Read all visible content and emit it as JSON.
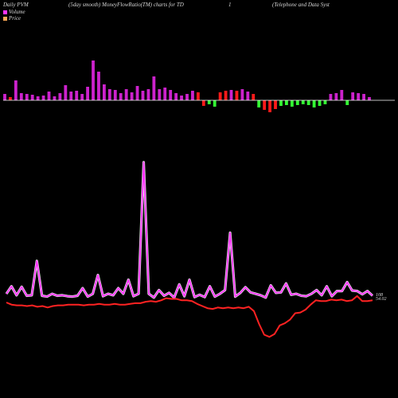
{
  "header": {
    "title_left": "Daily PVM",
    "title_mid": "(5day smooth) MoneyFlowRatio(TM) charts for TD",
    "title_num": "1",
    "title_right": "(Telephone  and Data  Syst"
  },
  "legend": {
    "volume_label": "Volume",
    "price_label": "Price",
    "volume_color": "#ff33ff",
    "price_color": "#ffaa55"
  },
  "end_labels": {
    "price_a": "108",
    "price_b": "54.02"
  },
  "colors": {
    "background": "#000000",
    "bar_up": "#cc22cc",
    "bar_down_red": "#ff1a1a",
    "bar_down_green": "#33ff33",
    "flow_line": "#ff33ff",
    "price_line": "#ff2222",
    "baseline": "#ffffff"
  },
  "chart_data": [
    {
      "type": "bar",
      "name": "money_flow_bars",
      "values": [
        {
          "v": 8,
          "c": "up"
        },
        {
          "v": 4,
          "c": "down_red"
        },
        {
          "v": 25,
          "c": "up"
        },
        {
          "v": 9,
          "c": "up"
        },
        {
          "v": 8,
          "c": "up"
        },
        {
          "v": 7,
          "c": "up"
        },
        {
          "v": 5,
          "c": "up"
        },
        {
          "v": 6,
          "c": "up"
        },
        {
          "v": 11,
          "c": "up"
        },
        {
          "v": 5,
          "c": "up"
        },
        {
          "v": 9,
          "c": "up"
        },
        {
          "v": 19,
          "c": "up"
        },
        {
          "v": 11,
          "c": "up"
        },
        {
          "v": 12,
          "c": "up"
        },
        {
          "v": 8,
          "c": "up"
        },
        {
          "v": 17,
          "c": "up"
        },
        {
          "v": 50,
          "c": "up"
        },
        {
          "v": 36,
          "c": "up"
        },
        {
          "v": 20,
          "c": "up"
        },
        {
          "v": 14,
          "c": "up"
        },
        {
          "v": 13,
          "c": "up"
        },
        {
          "v": 9,
          "c": "up"
        },
        {
          "v": 14,
          "c": "up"
        },
        {
          "v": 10,
          "c": "up"
        },
        {
          "v": 18,
          "c": "up"
        },
        {
          "v": 12,
          "c": "up"
        },
        {
          "v": 14,
          "c": "up"
        },
        {
          "v": 30,
          "c": "up"
        },
        {
          "v": 14,
          "c": "up"
        },
        {
          "v": 16,
          "c": "up"
        },
        {
          "v": 13,
          "c": "up"
        },
        {
          "v": 9,
          "c": "up"
        },
        {
          "v": 6,
          "c": "up"
        },
        {
          "v": 8,
          "c": "up"
        },
        {
          "v": 12,
          "c": "up"
        },
        {
          "v": 10,
          "c": "down_red"
        },
        {
          "v": -7,
          "c": "down_red"
        },
        {
          "v": -5,
          "c": "down_green"
        },
        {
          "v": -8,
          "c": "down_green"
        },
        {
          "v": 10,
          "c": "down_red"
        },
        {
          "v": 12,
          "c": "down_red"
        },
        {
          "v": 13,
          "c": "up"
        },
        {
          "v": 12,
          "c": "down_red"
        },
        {
          "v": 14,
          "c": "up"
        },
        {
          "v": 11,
          "c": "up"
        },
        {
          "v": 8,
          "c": "down_red"
        },
        {
          "v": -9,
          "c": "down_green"
        },
        {
          "v": -12,
          "c": "down_red"
        },
        {
          "v": -15,
          "c": "down_red"
        },
        {
          "v": -11,
          "c": "down_red"
        },
        {
          "v": -7,
          "c": "down_green"
        },
        {
          "v": -6,
          "c": "down_green"
        },
        {
          "v": -8,
          "c": "down_green"
        },
        {
          "v": -6,
          "c": "down_green"
        },
        {
          "v": -5,
          "c": "down_green"
        },
        {
          "v": -6,
          "c": "down_green"
        },
        {
          "v": -9,
          "c": "down_green"
        },
        {
          "v": -7,
          "c": "down_green"
        },
        {
          "v": -5,
          "c": "down_green"
        },
        {
          "v": 8,
          "c": "up"
        },
        {
          "v": 9,
          "c": "up"
        },
        {
          "v": 13,
          "c": "up"
        },
        {
          "v": -6,
          "c": "down_green"
        },
        {
          "v": 10,
          "c": "up"
        },
        {
          "v": 9,
          "c": "up"
        },
        {
          "v": 8,
          "c": "up"
        },
        {
          "v": 4,
          "c": "up"
        }
      ]
    },
    {
      "type": "line",
      "name": "money_flow_line",
      "values": [
        10,
        26,
        7,
        25,
        6,
        7,
        80,
        6,
        4,
        10,
        6,
        7,
        5,
        4,
        6,
        22,
        4,
        10,
        50,
        5,
        10,
        7,
        22,
        10,
        40,
        5,
        10,
        290,
        10,
        2,
        18,
        6,
        12,
        2,
        30,
        5,
        40,
        3,
        8,
        3,
        26,
        4,
        10,
        18,
        140,
        4,
        12,
        24,
        13,
        10,
        7,
        2,
        28,
        12,
        13,
        32,
        8,
        10,
        6,
        5,
        10,
        18,
        7,
        26,
        5,
        16,
        16,
        35,
        17,
        16,
        9,
        16,
        6
      ]
    },
    {
      "type": "line",
      "name": "price_line",
      "values": [
        60,
        57,
        56,
        56,
        55,
        56,
        54,
        55,
        53,
        55,
        56,
        56,
        57,
        57,
        57,
        56,
        57,
        57,
        58,
        57,
        57,
        58,
        57,
        57,
        58,
        59,
        59,
        61,
        62,
        61,
        63,
        66,
        65,
        65,
        63,
        63,
        62,
        58,
        55,
        52,
        51,
        53,
        52,
        53,
        52,
        53,
        52,
        54,
        48,
        30,
        15,
        12,
        16,
        28,
        31,
        36,
        45,
        46,
        50,
        57,
        63,
        62,
        62,
        64,
        63,
        64,
        62,
        63,
        69,
        62,
        62,
        63
      ]
    }
  ]
}
